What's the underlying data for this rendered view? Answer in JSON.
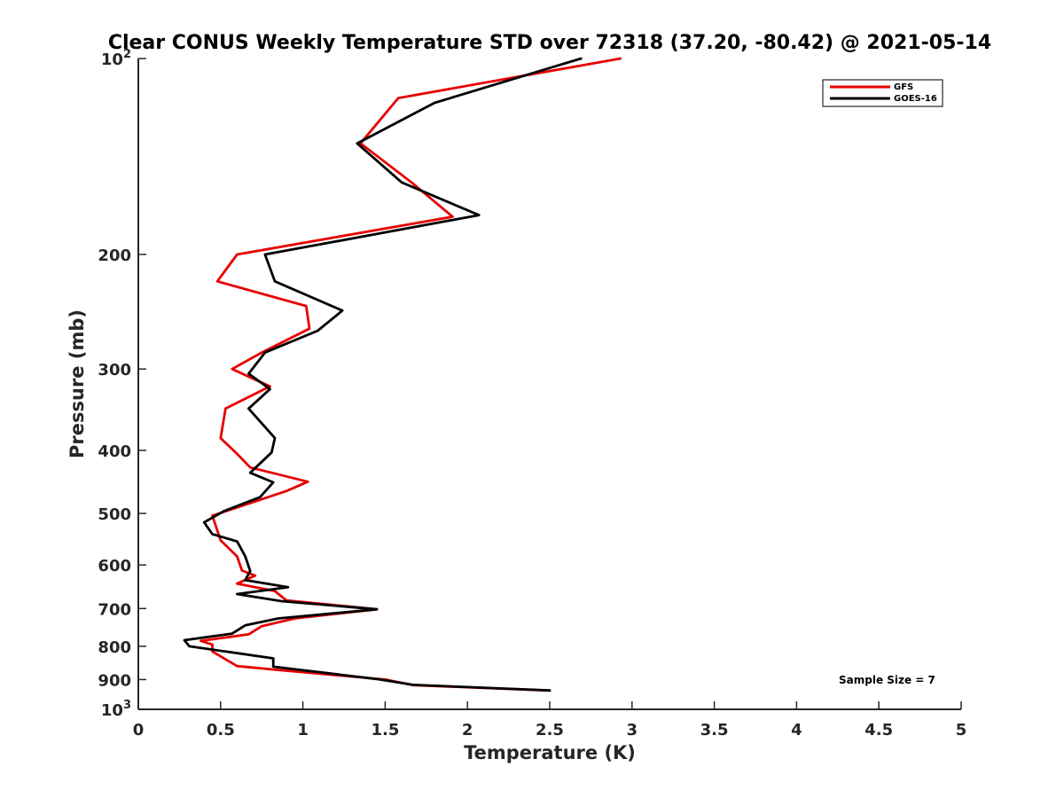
{
  "title": "Clear CONUS Weekly Temperature STD over 72318 (37.20, -80.42) @ 2021-05-14",
  "annotation": "Sample Size = 7",
  "chart_data": {
    "type": "line",
    "title": "Clear CONUS Weekly Temperature STD over 72318 (37.20, -80.42) @ 2021-05-14",
    "xlabel": "Temperature (K)",
    "ylabel": "Pressure (mb)",
    "xlim": [
      0,
      5
    ],
    "ylim": [
      100,
      1000
    ],
    "y_scale": "log",
    "y_reversed": true,
    "x_ticks": [
      {
        "value": 0,
        "label": "0"
      },
      {
        "value": 0.5,
        "label": "0.5"
      },
      {
        "value": 1,
        "label": "1"
      },
      {
        "value": 1.5,
        "label": "1.5"
      },
      {
        "value": 2,
        "label": "2"
      },
      {
        "value": 2.5,
        "label": "2.5"
      },
      {
        "value": 3,
        "label": "3"
      },
      {
        "value": 3.5,
        "label": "3.5"
      },
      {
        "value": 4,
        "label": "4"
      },
      {
        "value": 4.5,
        "label": "4.5"
      },
      {
        "value": 5,
        "label": "5"
      }
    ],
    "y_ticks": [
      {
        "value": 100,
        "label": "10",
        "exp": "2"
      },
      {
        "value": 200,
        "label": "200"
      },
      {
        "value": 300,
        "label": "300"
      },
      {
        "value": 400,
        "label": "400"
      },
      {
        "value": 500,
        "label": "500"
      },
      {
        "value": 600,
        "label": "600"
      },
      {
        "value": 700,
        "label": "700"
      },
      {
        "value": 800,
        "label": "800"
      },
      {
        "value": 900,
        "label": "900"
      },
      {
        "value": 1000,
        "label": "10",
        "exp": "3"
      }
    ],
    "grid": false,
    "legend_position": "top-right",
    "series": [
      {
        "name": "GFS",
        "color": "#e60000",
        "points": [
          {
            "x": 2.93,
            "p": 100
          },
          {
            "x": 1.58,
            "p": 115
          },
          {
            "x": 1.35,
            "p": 135
          },
          {
            "x": 1.66,
            "p": 155
          },
          {
            "x": 1.91,
            "p": 175
          },
          {
            "x": 0.6,
            "p": 200
          },
          {
            "x": 0.48,
            "p": 220
          },
          {
            "x": 1.02,
            "p": 240
          },
          {
            "x": 1.04,
            "p": 260
          },
          {
            "x": 0.75,
            "p": 283
          },
          {
            "x": 0.57,
            "p": 300
          },
          {
            "x": 0.8,
            "p": 319
          },
          {
            "x": 0.53,
            "p": 345
          },
          {
            "x": 0.5,
            "p": 383
          },
          {
            "x": 0.6,
            "p": 405
          },
          {
            "x": 0.68,
            "p": 425
          },
          {
            "x": 1.03,
            "p": 447
          },
          {
            "x": 0.9,
            "p": 462
          },
          {
            "x": 0.45,
            "p": 504
          },
          {
            "x": 0.5,
            "p": 550
          },
          {
            "x": 0.6,
            "p": 582
          },
          {
            "x": 0.63,
            "p": 612
          },
          {
            "x": 0.71,
            "p": 623
          },
          {
            "x": 0.6,
            "p": 641
          },
          {
            "x": 0.83,
            "p": 658
          },
          {
            "x": 0.9,
            "p": 680
          },
          {
            "x": 1.45,
            "p": 702
          },
          {
            "x": 0.95,
            "p": 725
          },
          {
            "x": 0.75,
            "p": 745
          },
          {
            "x": 0.67,
            "p": 767
          },
          {
            "x": 0.38,
            "p": 785
          },
          {
            "x": 0.45,
            "p": 795
          },
          {
            "x": 0.45,
            "p": 815
          },
          {
            "x": 0.6,
            "p": 858
          },
          {
            "x": 0.85,
            "p": 870
          },
          {
            "x": 1.5,
            "p": 900
          },
          {
            "x": 1.67,
            "p": 918
          },
          {
            "x": 2.5,
            "p": 936
          }
        ]
      },
      {
        "name": "GOES-16",
        "color": "#000000",
        "points": [
          {
            "x": 2.69,
            "p": 100
          },
          {
            "x": 1.8,
            "p": 117
          },
          {
            "x": 1.33,
            "p": 135
          },
          {
            "x": 1.6,
            "p": 155
          },
          {
            "x": 2.07,
            "p": 174
          },
          {
            "x": 0.77,
            "p": 200
          },
          {
            "x": 0.83,
            "p": 220
          },
          {
            "x": 1.24,
            "p": 244
          },
          {
            "x": 1.09,
            "p": 262
          },
          {
            "x": 0.77,
            "p": 283
          },
          {
            "x": 0.67,
            "p": 305
          },
          {
            "x": 0.8,
            "p": 322
          },
          {
            "x": 0.67,
            "p": 345
          },
          {
            "x": 0.83,
            "p": 383
          },
          {
            "x": 0.81,
            "p": 403
          },
          {
            "x": 0.68,
            "p": 433
          },
          {
            "x": 0.82,
            "p": 448
          },
          {
            "x": 0.74,
            "p": 472
          },
          {
            "x": 0.52,
            "p": 496
          },
          {
            "x": 0.4,
            "p": 516
          },
          {
            "x": 0.45,
            "p": 538
          },
          {
            "x": 0.6,
            "p": 552
          },
          {
            "x": 0.65,
            "p": 582
          },
          {
            "x": 0.68,
            "p": 613
          },
          {
            "x": 0.65,
            "p": 633
          },
          {
            "x": 0.91,
            "p": 649
          },
          {
            "x": 0.6,
            "p": 665
          },
          {
            "x": 0.87,
            "p": 682
          },
          {
            "x": 1.45,
            "p": 702
          },
          {
            "x": 0.85,
            "p": 725
          },
          {
            "x": 0.65,
            "p": 743
          },
          {
            "x": 0.57,
            "p": 765
          },
          {
            "x": 0.28,
            "p": 783
          },
          {
            "x": 0.31,
            "p": 800
          },
          {
            "x": 0.82,
            "p": 835
          },
          {
            "x": 0.82,
            "p": 860
          },
          {
            "x": 1.46,
            "p": 899
          },
          {
            "x": 1.67,
            "p": 917
          },
          {
            "x": 2.5,
            "p": 935
          }
        ]
      }
    ]
  }
}
